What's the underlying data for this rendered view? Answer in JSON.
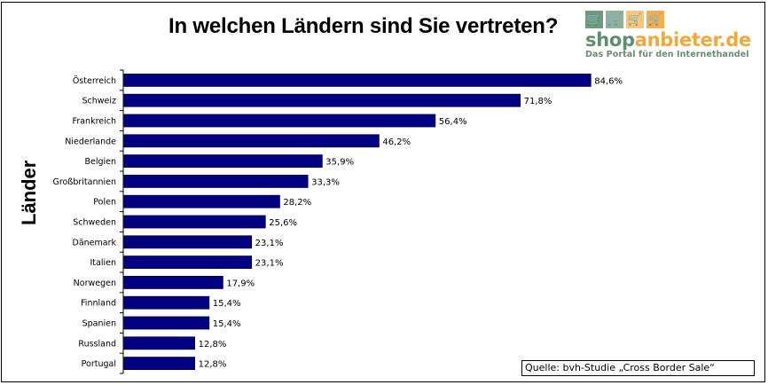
{
  "chart_data": {
    "type": "bar",
    "orientation": "horizontal",
    "title": "In welchen Ländern sind Sie vertreten?",
    "xlabel": "",
    "ylabel": "Länder",
    "xlim": [
      0,
      100
    ],
    "grid": false,
    "categories": [
      "Österreich",
      "Schweiz",
      "Frankreich",
      "Niederlande",
      "Belgien",
      "Großbritannien",
      "Polen",
      "Schweden",
      "Dänemark",
      "Italien",
      "Norwegen",
      "Finnland",
      "Spanien",
      "Russland",
      "Portugal"
    ],
    "values": [
      84.6,
      71.8,
      56.4,
      46.2,
      35.9,
      33.3,
      28.2,
      25.6,
      23.1,
      23.1,
      17.9,
      15.4,
      15.4,
      12.8,
      12.8
    ],
    "value_labels": [
      "84,6%",
      "71,8%",
      "56,4%",
      "46,2%",
      "35,9%",
      "33,3%",
      "28,2%",
      "25,6%",
      "23,1%",
      "23,1%",
      "17,9%",
      "15,4%",
      "15,4%",
      "12,8%",
      "12,8%"
    ],
    "bar_color": "#000080",
    "source_note": "Quelle: bvh-Studie „Cross Border Sale“"
  },
  "logo": {
    "name_part1": "shop",
    "name_part2": "anbieter.de",
    "tagline": "Das Portal für den Internethandel",
    "color_green": "#5f8f70",
    "color_orange": "#f0a93a",
    "cart_icon": "🛒"
  }
}
